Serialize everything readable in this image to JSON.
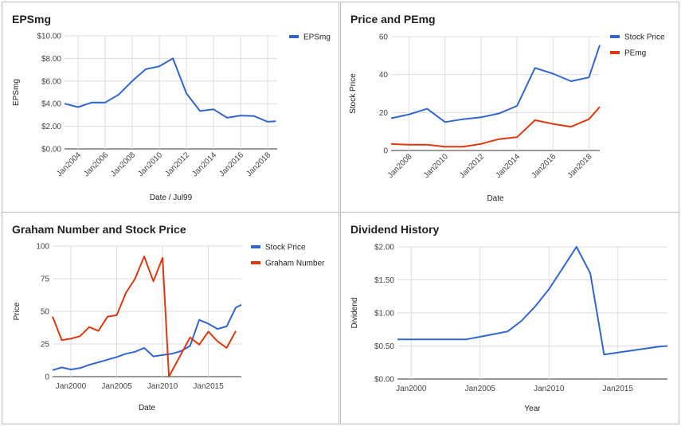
{
  "chart_data": [
    {
      "id": "eps",
      "type": "line",
      "title": "EPSmg",
      "xlabel": "Date / Jul99",
      "ylabel": "EPSmg",
      "x_kind": "year",
      "xlim": [
        2003,
        2018.7
      ],
      "ylim": [
        0,
        10
      ],
      "grid": true,
      "legend": "top-right",
      "yticks": [
        0,
        2,
        4,
        6,
        8,
        10
      ],
      "ytick_labels": [
        "$0.00",
        "$2.00",
        "$4.00",
        "$6.00",
        "$8.00",
        "$10.00"
      ],
      "xticks": [
        2004,
        2006,
        2008,
        2010,
        2012,
        2014,
        2016,
        2018
      ],
      "xtick_labels": [
        "Jan2004",
        "Jan2006",
        "Jan2008",
        "Jan2010",
        "Jan2012",
        "Jan2014",
        "Jan2016",
        "Jan2018"
      ],
      "x": [
        2003,
        2004,
        2005,
        2006,
        2007,
        2008,
        2009,
        2010,
        2011,
        2012,
        2013,
        2014,
        2015,
        2016,
        2017,
        2018,
        2018.6
      ],
      "series": [
        {
          "name": "EPSmg",
          "color": "#3366cc",
          "values": [
            4.0,
            3.7,
            4.1,
            4.1,
            4.8,
            6.0,
            7.05,
            7.3,
            8.0,
            4.9,
            3.35,
            3.5,
            2.75,
            2.95,
            2.9,
            2.4,
            2.45
          ]
        }
      ]
    },
    {
      "id": "price",
      "type": "line",
      "title": "Price and PEmg",
      "xlabel": "Date",
      "ylabel": "Stock Price",
      "x_kind": "year",
      "xlim": [
        2007,
        2018.6
      ],
      "ylim": [
        0,
        60
      ],
      "grid": true,
      "legend": "top-right",
      "yticks": [
        0,
        20,
        40,
        60
      ],
      "ytick_labels": [
        "0",
        "20",
        "40",
        "60"
      ],
      "xticks": [
        2008,
        2010,
        2012,
        2014,
        2016,
        2018
      ],
      "xtick_labels": [
        "Jan2008",
        "Jan2010",
        "Jan2012",
        "Jan2014",
        "Jan2016",
        "Jan2018"
      ],
      "x": [
        2007,
        2008,
        2009,
        2010,
        2011,
        2012,
        2013,
        2014,
        2015,
        2016,
        2017,
        2018,
        2018.6
      ],
      "series": [
        {
          "name": "Stock Price",
          "color": "#3366cc",
          "values": [
            17,
            19,
            22,
            15,
            16.5,
            17.5,
            19.5,
            23.5,
            43.5,
            40.5,
            36.5,
            38.5,
            55.5
          ]
        },
        {
          "name": "PEmg",
          "color": "#dc3912",
          "values": [
            3.5,
            3,
            3,
            2,
            2,
            3.5,
            6,
            7,
            16,
            14,
            12.5,
            16.5,
            23
          ]
        }
      ]
    },
    {
      "id": "graham",
      "type": "line",
      "title": "Graham Number and Stock Price",
      "xlabel": "Date",
      "ylabel": "Price",
      "x_kind": "year",
      "xlim": [
        1998,
        2018.6
      ],
      "ylim": [
        0,
        100
      ],
      "grid": true,
      "legend": "top-right",
      "yticks": [
        0,
        25,
        50,
        75,
        100
      ],
      "ytick_labels": [
        "0",
        "25",
        "50",
        "75",
        "100"
      ],
      "xticks": [
        2000,
        2005,
        2010,
        2015
      ],
      "xtick_labels": [
        "Jan2000",
        "Jan2005",
        "Jan2010",
        "Jan2015"
      ],
      "series": [
        {
          "name": "Stock Price",
          "color": "#3366cc",
          "x": [
            1998,
            1999,
            2000,
            2001,
            2002,
            2003,
            2004,
            2005,
            2006,
            2007,
            2008,
            2009,
            2010,
            2011,
            2012,
            2013,
            2014,
            2015,
            2016,
            2017,
            2018,
            2018.6
          ],
          "values": [
            5,
            7,
            5.5,
            6.5,
            9,
            11,
            13,
            15,
            17.5,
            19,
            22,
            15.5,
            16.5,
            17.5,
            19.5,
            23.5,
            43.5,
            40.5,
            36.5,
            38.5,
            53,
            55
          ]
        },
        {
          "name": "Graham Number",
          "color": "#dc3912",
          "x": [
            1998,
            1999,
            2000,
            2001,
            2002,
            2003,
            2004,
            2005,
            2006,
            2007,
            2008,
            2009,
            2010,
            2010.7,
            2012,
            2013,
            2014,
            2015,
            2016,
            2017,
            2018
          ],
          "values": [
            46,
            28,
            29,
            31,
            38,
            35,
            46,
            47,
            64,
            75,
            92,
            73,
            91,
            0,
            17,
            30,
            24.5,
            34.5,
            27,
            22,
            35
          ]
        }
      ]
    },
    {
      "id": "dividend",
      "type": "line",
      "title": "Dividend History",
      "xlabel": "Year",
      "ylabel": "Dividend",
      "x_kind": "year",
      "xlim": [
        1999,
        2018.6
      ],
      "ylim": [
        0,
        2
      ],
      "grid": true,
      "legend": "none",
      "yticks": [
        0,
        0.5,
        1.0,
        1.5,
        2.0
      ],
      "ytick_labels": [
        "$0.00",
        "$0.50",
        "$1.00",
        "$1.50",
        "$2.00"
      ],
      "xticks": [
        2000,
        2005,
        2010,
        2015
      ],
      "xtick_labels": [
        "Jan2000",
        "Jan2005",
        "Jan2010",
        "Jan2015"
      ],
      "x": [
        1999,
        2000,
        2001,
        2002,
        2003,
        2004,
        2005,
        2006,
        2007,
        2008,
        2009,
        2010,
        2011,
        2012,
        2013,
        2014,
        2015,
        2016,
        2017,
        2018,
        2018.6
      ],
      "series": [
        {
          "name": "",
          "color": "#3366cc",
          "values": [
            0.6,
            0.6,
            0.6,
            0.6,
            0.6,
            0.6,
            0.64,
            0.68,
            0.72,
            0.88,
            1.1,
            1.36,
            1.68,
            2.0,
            1.6,
            0.37,
            0.4,
            0.43,
            0.46,
            0.49,
            0.5
          ]
        }
      ]
    }
  ]
}
